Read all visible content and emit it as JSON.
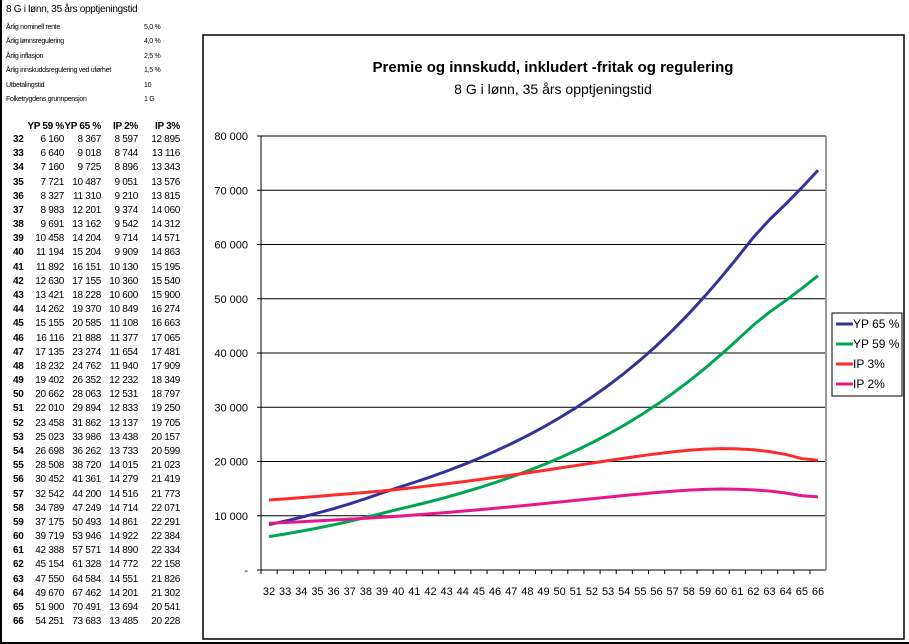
{
  "sheet": {
    "title": "8 G i lønn, 35 års opptjeningstid",
    "params": [
      {
        "label": "Årlig nominell rente",
        "value": "5,0 %"
      },
      {
        "label": "Årlig lønnsregulering",
        "value": "4,0 %"
      },
      {
        "label": "Årlig inflasjon",
        "value": "2,5 %"
      },
      {
        "label": "Årlig innskuddsregulering ved uførhet",
        "value": "1,5 %"
      },
      {
        "label": "Utbetalingstid",
        "value": "10"
      },
      {
        "label": "Folketrygdens grunnpensjon",
        "value": "1 G"
      }
    ],
    "columns": [
      "YP 59 %",
      "YP 65 %",
      "IP 2%",
      "IP 3%"
    ],
    "rows": [
      [
        "32",
        "6 160",
        "8 367",
        "8 597",
        "12 895"
      ],
      [
        "33",
        "6 640",
        "9 018",
        "8 744",
        "13 116"
      ],
      [
        "34",
        "7 160",
        "9 725",
        "8 896",
        "13 343"
      ],
      [
        "35",
        "7 721",
        "10 487",
        "9 051",
        "13 576"
      ],
      [
        "36",
        "8 327",
        "11 310",
        "9 210",
        "13 815"
      ],
      [
        "37",
        "8 983",
        "12 201",
        "9 374",
        "14 060"
      ],
      [
        "38",
        "9 691",
        "13 162",
        "9 542",
        "14 312"
      ],
      [
        "39",
        "10 458",
        "14 204",
        "9 714",
        "14 571"
      ],
      [
        "40",
        "11 194",
        "15 204",
        "9 909",
        "14 863"
      ],
      [
        "41",
        "11 892",
        "16 151",
        "10 130",
        "15 195"
      ],
      [
        "42",
        "12 630",
        "17 155",
        "10 360",
        "15 540"
      ],
      [
        "43",
        "13 421",
        "18 228",
        "10 600",
        "15 900"
      ],
      [
        "44",
        "14 262",
        "19 370",
        "10 849",
        "16 274"
      ],
      [
        "45",
        "15 155",
        "20 585",
        "11 108",
        "16 663"
      ],
      [
        "46",
        "16 116",
        "21 888",
        "11 377",
        "17 065"
      ],
      [
        "47",
        "17 135",
        "23 274",
        "11 654",
        "17 481"
      ],
      [
        "48",
        "18 232",
        "24 762",
        "11 940",
        "17 909"
      ],
      [
        "49",
        "19 402",
        "26 352",
        "12 232",
        "18 349"
      ],
      [
        "50",
        "20 662",
        "28 063",
        "12 531",
        "18 797"
      ],
      [
        "51",
        "22 010",
        "29 894",
        "12 833",
        "19 250"
      ],
      [
        "52",
        "23 458",
        "31 862",
        "13 137",
        "19 705"
      ],
      [
        "53",
        "25 023",
        "33 986",
        "13 438",
        "20 157"
      ],
      [
        "54",
        "26 698",
        "36 262",
        "13 733",
        "20 599"
      ],
      [
        "55",
        "28 508",
        "38 720",
        "14 015",
        "21 023"
      ],
      [
        "56",
        "30 452",
        "41 361",
        "14 279",
        "21 419"
      ],
      [
        "57",
        "32 542",
        "44 200",
        "14 516",
        "21 773"
      ],
      [
        "58",
        "34 789",
        "47 249",
        "14 714",
        "22 071"
      ],
      [
        "59",
        "37 175",
        "50 493",
        "14 861",
        "22 291"
      ],
      [
        "60",
        "39 719",
        "53 946",
        "14 922",
        "22 384"
      ],
      [
        "61",
        "42 388",
        "57 571",
        "14 890",
        "22 334"
      ],
      [
        "62",
        "45 154",
        "61 328",
        "14 772",
        "22 158"
      ],
      [
        "63",
        "47 550",
        "64 584",
        "14 551",
        "21 826"
      ],
      [
        "64",
        "49 670",
        "67 462",
        "14 201",
        "21 302"
      ],
      [
        "65",
        "51 900",
        "70 491",
        "13 694",
        "20 541"
      ],
      [
        "66",
        "54 251",
        "73 683",
        "13 485",
        "20 228"
      ]
    ]
  },
  "chart_data": {
    "type": "line",
    "title": "Premie og innskudd, inkludert -fritak og regulering",
    "subtitle": "8 G i lønn, 35 års opptjeningstid",
    "x": [
      32,
      33,
      34,
      35,
      36,
      37,
      38,
      39,
      40,
      41,
      42,
      43,
      44,
      45,
      46,
      47,
      48,
      49,
      50,
      51,
      52,
      53,
      54,
      55,
      56,
      57,
      58,
      59,
      60,
      61,
      62,
      63,
      64,
      65,
      66
    ],
    "ylim": [
      0,
      80000
    ],
    "yticks": [
      "-",
      "10 000",
      "20 000",
      "30 000",
      "40 000",
      "50 000",
      "60 000",
      "70 000",
      "80 000"
    ],
    "grid": true,
    "legend": "right",
    "series": [
      {
        "name": "YP 65 %",
        "color": "#333399",
        "values": [
          8367,
          9018,
          9725,
          10487,
          11310,
          12201,
          13162,
          14204,
          15204,
          16151,
          17155,
          18228,
          19370,
          20585,
          21888,
          23274,
          24762,
          26352,
          28063,
          29894,
          31862,
          33986,
          36262,
          38720,
          41361,
          44200,
          47249,
          50493,
          53946,
          57571,
          61328,
          64584,
          67462,
          70491,
          73683
        ]
      },
      {
        "name": "YP 59 %",
        "color": "#00a651",
        "values": [
          6160,
          6640,
          7160,
          7721,
          8327,
          8983,
          9691,
          10458,
          11194,
          11892,
          12630,
          13421,
          14262,
          15155,
          16116,
          17135,
          18232,
          19402,
          20662,
          22010,
          23458,
          25023,
          26698,
          28508,
          30452,
          32542,
          34789,
          37175,
          39719,
          42388,
          45154,
          47550,
          49670,
          51900,
          54251
        ]
      },
      {
        "name": "IP 3%",
        "color": "#ff2a2a",
        "values": [
          12895,
          13116,
          13343,
          13576,
          13815,
          14060,
          14312,
          14571,
          14863,
          15195,
          15540,
          15900,
          16274,
          16663,
          17065,
          17481,
          17909,
          18349,
          18797,
          19250,
          19705,
          20157,
          20599,
          21023,
          21419,
          21773,
          22071,
          22291,
          22384,
          22334,
          22158,
          21826,
          21302,
          20541,
          20228
        ]
      },
      {
        "name": "IP 2%",
        "color": "#e6168c",
        "values": [
          8597,
          8744,
          8896,
          9051,
          9210,
          9374,
          9542,
          9714,
          9909,
          10130,
          10360,
          10600,
          10849,
          11108,
          11377,
          11654,
          11940,
          12232,
          12531,
          12833,
          13137,
          13438,
          13733,
          14015,
          14279,
          14516,
          14714,
          14861,
          14922,
          14890,
          14772,
          14551,
          14201,
          13694,
          13485
        ]
      }
    ]
  }
}
